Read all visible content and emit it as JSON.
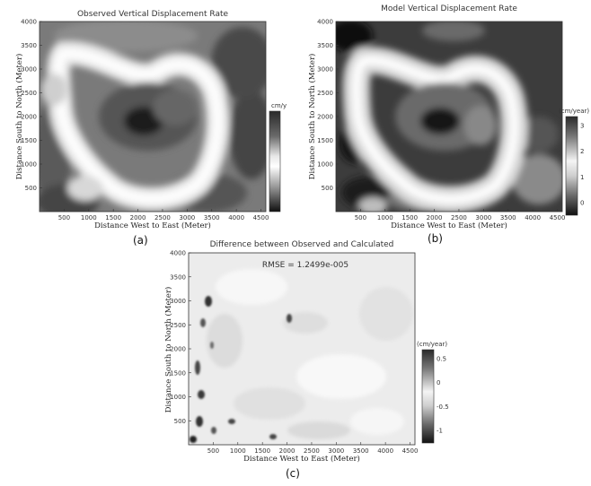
{
  "chart_data": [
    {
      "type": "heatmap",
      "panel_label": "(a)",
      "title": "Observed Vertical Displacement Rate",
      "xlabel": "Distance West to East (Meter)",
      "ylabel": "Distance South to North (Meter)",
      "xlim": [
        0,
        4600
      ],
      "ylim": [
        0,
        4000
      ],
      "x_ticks": [
        500,
        1000,
        1500,
        2000,
        2500,
        3000,
        3500,
        4000,
        4500
      ],
      "y_ticks": [
        500,
        1000,
        1500,
        2000,
        2500,
        3000,
        3500,
        4000
      ],
      "colorbar_label": "cm/y",
      "colorbar_ticks": []
    },
    {
      "type": "heatmap",
      "panel_label": "(b)",
      "title": "Model Vertical Displacement Rate",
      "xlabel": "Distance West to East (Meter)",
      "ylabel": "Distance South to North (Meter)",
      "xlim": [
        0,
        4600
      ],
      "ylim": [
        0,
        4000
      ],
      "x_ticks": [
        500,
        1000,
        1500,
        2000,
        2500,
        3000,
        3500,
        4000,
        4500
      ],
      "y_ticks": [
        500,
        1000,
        1500,
        2000,
        2500,
        3000,
        3500,
        4000
      ],
      "colorbar_label": "(cm/year)",
      "colorbar_ticks": [
        3,
        2,
        1,
        0
      ]
    },
    {
      "type": "heatmap",
      "panel_label": "(c)",
      "title": "Difference between Observed and Calculated",
      "annotation": "RMSE = 1.2499e-005",
      "xlabel": "Distance West to East (Meter)",
      "ylabel": "Distance South to North (Meter)",
      "xlim": [
        0,
        4600
      ],
      "ylim": [
        0,
        4000
      ],
      "x_ticks": [
        500,
        1000,
        1500,
        2000,
        2500,
        3000,
        3500,
        4000,
        4500
      ],
      "y_ticks": [
        500,
        1000,
        1500,
        2000,
        2500,
        3000,
        3500,
        4000
      ],
      "colorbar_label": "(cm/year)",
      "colorbar_ticks": [
        0.5,
        0,
        -0.5,
        -1
      ]
    }
  ]
}
